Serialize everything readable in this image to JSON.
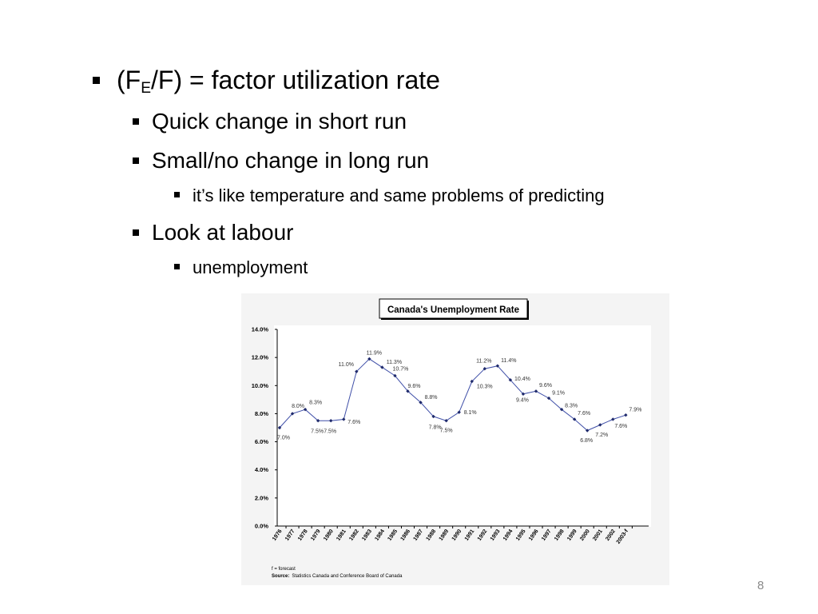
{
  "slide": {
    "bullet1_pre": "(F",
    "bullet1_sub": "E",
    "bullet1_post": "/F) = factor utilization rate",
    "bullet2": "Quick change in short run",
    "bullet3": "Small/no change in long run",
    "bullet4": "it’s like temperature and same problems of predicting",
    "bullet5": "Look at labour",
    "bullet6": "unemployment",
    "page_number": "8"
  },
  "chart_data": {
    "type": "line",
    "title": "Canada's Unemployment Rate",
    "xlabel": "",
    "ylabel": "",
    "categories": [
      "1976",
      "1977",
      "1978",
      "1979",
      "1980",
      "1981",
      "1982",
      "1983",
      "1984",
      "1985",
      "1986",
      "1987",
      "1988",
      "1989",
      "1990",
      "1991",
      "1992",
      "1993",
      "1994",
      "1995",
      "1996",
      "1997",
      "1998",
      "1999",
      "2000",
      "2001",
      "2002",
      "2003-f"
    ],
    "values": [
      7.0,
      8.0,
      8.3,
      7.5,
      7.5,
      7.6,
      11.0,
      11.9,
      11.3,
      10.7,
      9.6,
      8.8,
      7.8,
      7.5,
      8.1,
      10.3,
      11.2,
      11.4,
      10.4,
      9.4,
      9.6,
      9.1,
      8.3,
      7.6,
      6.8,
      7.2,
      7.6,
      7.9
    ],
    "data_labels": [
      "7.0%",
      "8.0%",
      "8.3%",
      "7.5%",
      "7.5%",
      "7.6%",
      "11.0%",
      "11.9%",
      "11.3%",
      "10.7%",
      "9.6%",
      "8.8%",
      "7.8%",
      "7.5%",
      "8.1%",
      "10.3%",
      "11.2%",
      "11.4%",
      "10.4%",
      "9.4%",
      "9.6%",
      "9.1%",
      "8.3%",
      "7.6%",
      "6.8%",
      "7.2%",
      "7.6%",
      "7.9%"
    ],
    "y_ticks": [
      "0.0%",
      "2.0%",
      "4.0%",
      "6.0%",
      "8.0%",
      "10.0%",
      "12.0%",
      "14.0%"
    ],
    "ylim": [
      0,
      14
    ],
    "grid": false,
    "legend": "none",
    "line_color": "#3f4fa8",
    "marker_color": "#1f2a6b",
    "footnote": "f = forecast",
    "source_label": "Source:",
    "source_text": "Statistics Canada and Conference Board of Canada"
  }
}
